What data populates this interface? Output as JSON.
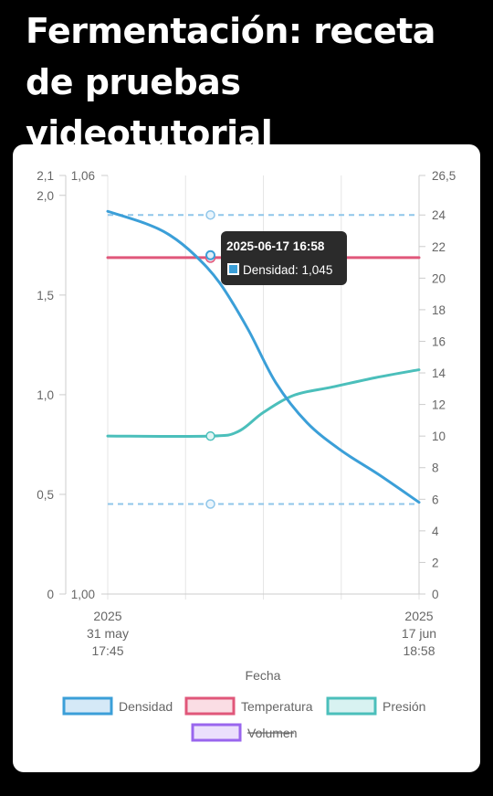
{
  "page": {
    "title": "Fermentación: receta de pruebas videotutorial"
  },
  "colors": {
    "densidad": "#3b9fd8",
    "temperatura": "#e0577a",
    "presion": "#4bbfbb",
    "volumen": "#9966ee",
    "reference": "#8fc6ea",
    "grid": "#e6e6e6",
    "axis_text": "#666666",
    "tooltip_bg": "#2b2b2b"
  },
  "chart_data": {
    "type": "line",
    "xlabel": "Fecha",
    "x_ticks": [
      {
        "lines": [
          "2025",
          "31 may",
          "17:45"
        ]
      },
      {
        "lines": [
          "2025",
          "17 jun",
          "18:58"
        ]
      }
    ],
    "y_axes": {
      "left_outer": {
        "ticks": [
          "2,1",
          "2,0",
          "1,5",
          "1,0",
          "0,5",
          "0"
        ],
        "range": [
          0,
          2.1
        ]
      },
      "left_inner": {
        "ticks": [
          "1,06",
          "1,00"
        ],
        "range": [
          1.0,
          1.06
        ]
      },
      "right": {
        "ticks": [
          "26,5",
          "24",
          "22",
          "20",
          "18",
          "16",
          "14",
          "12",
          "10",
          "8",
          "6",
          "4",
          "2",
          "0"
        ],
        "range": [
          0,
          26.5
        ]
      }
    },
    "grid": true,
    "legend_position": "bottom",
    "series": [
      {
        "name": "Densidad",
        "axis": "left_outer",
        "hidden": false,
        "x": [
          0,
          0.12,
          0.2,
          0.28,
          0.36,
          0.45,
          0.54,
          0.64,
          0.75,
          0.87,
          1.0
        ],
        "y": [
          1.92,
          1.86,
          1.8,
          1.7,
          1.56,
          1.33,
          1.06,
          0.86,
          0.72,
          0.6,
          0.46
        ]
      },
      {
        "name": "Temperatura",
        "axis": "right",
        "hidden": false,
        "x": [
          0,
          1
        ],
        "y": [
          21.3,
          21.3
        ]
      },
      {
        "name": "Presión",
        "axis": "right",
        "hidden": false,
        "x": [
          0,
          0.33,
          0.42,
          0.5,
          0.6,
          0.72,
          0.86,
          1.0
        ],
        "y": [
          10,
          10,
          10.3,
          11.5,
          12.6,
          13.1,
          13.7,
          14.2
        ]
      },
      {
        "name": "Volumen",
        "axis": "right",
        "hidden": true,
        "x": [],
        "y": []
      }
    ],
    "reference_lines": [
      {
        "axis": "right",
        "value": 24
      },
      {
        "axis": "right",
        "value": 5.7
      }
    ],
    "marker_x": 0.33,
    "tooltip": {
      "title": "2025-06-17 16:58",
      "label": "Densidad: 1,045"
    },
    "legend": [
      {
        "label": "Densidad",
        "key": "densidad",
        "fill": "#d5e9f7",
        "hidden": false
      },
      {
        "label": "Temperatura",
        "key": "temperatura",
        "fill": "#fadde4",
        "hidden": false
      },
      {
        "label": "Presión",
        "key": "presion",
        "fill": "#d8f2f1",
        "hidden": false
      },
      {
        "label": "Volumen",
        "key": "volumen",
        "fill": "#ebe0fc",
        "hidden": true
      }
    ]
  }
}
